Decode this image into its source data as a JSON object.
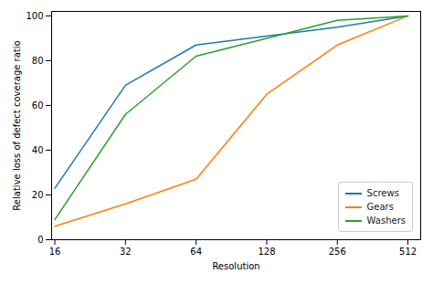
{
  "chart_data": {
    "type": "line",
    "x": [
      16,
      32,
      64,
      128,
      256,
      512
    ],
    "series": [
      {
        "name": "Screws",
        "color": "#1f77b4",
        "values": [
          23,
          69,
          87,
          91,
          95,
          100
        ]
      },
      {
        "name": "Gears",
        "color": "#ff7f0e",
        "values": [
          6,
          16,
          27,
          65,
          87,
          100
        ]
      },
      {
        "name": "Washers",
        "color": "#2ca02c",
        "values": [
          9,
          56,
          82,
          90,
          98,
          100
        ]
      }
    ],
    "xlabel": "Resolution",
    "ylabel": "Relative loss of defect coverage ratio",
    "xlim": [
      15.5,
      580
    ],
    "ylim": [
      0,
      102
    ],
    "xticks": [
      16,
      32,
      64,
      128,
      256,
      512
    ],
    "yticks": [
      0,
      20,
      40,
      60,
      80,
      100
    ],
    "log": "x",
    "grid": false,
    "legend": "lower right"
  }
}
